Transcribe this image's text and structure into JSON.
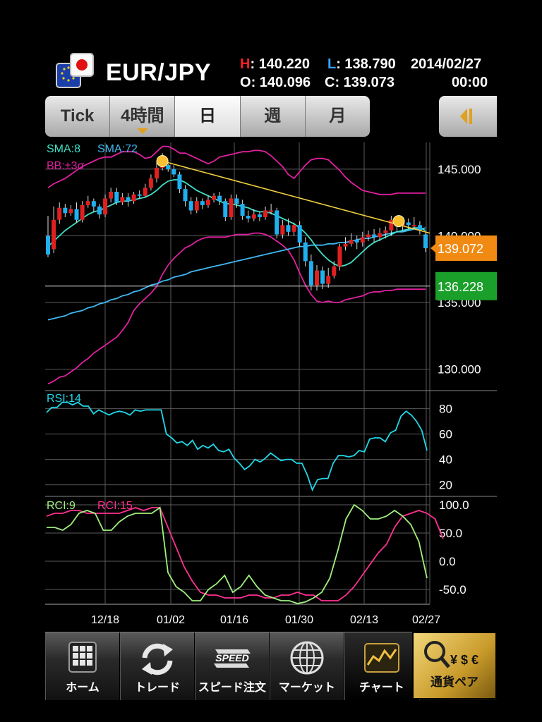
{
  "header": {
    "pair": "EUR/JPY",
    "high_key": "H",
    "high": ": 140.220",
    "low_key": "L",
    "low": ": 138.790",
    "date": "2014/02/27",
    "open_key": "O",
    "open": ": 140.096",
    "close_key": "C",
    "close": ": 139.073",
    "time": "00:00"
  },
  "tabs": [
    {
      "label": "Tick",
      "selected": false
    },
    {
      "label": "4時間",
      "selected": false
    },
    {
      "label": "日",
      "selected": true
    },
    {
      "label": "週",
      "selected": false
    },
    {
      "label": "月",
      "selected": false
    }
  ],
  "nav": {
    "home": "ホーム",
    "trade": "トレード",
    "speed": "スピード注文",
    "speed_icon_text": "SPEED",
    "market": "マーケット",
    "chart": "チャート",
    "pair": "通貨ペア",
    "pair_icon_text": "¥ $ €"
  },
  "colors": {
    "bid_tag": "#f08a12",
    "ask_tag": "#1aa02a",
    "sma8": "#40e0c8",
    "sma72": "#40b8f0",
    "bb": "#e020a0",
    "trendline": "#f0d040",
    "rsi": "#20d8e8",
    "rci9": "#a0f080",
    "rci15": "#ff3090",
    "candle_up": "#e02020",
    "candle_down": "#20b0f0"
  },
  "chart_data": [
    {
      "type": "candlestick",
      "title": "",
      "legend": [
        "SMA:8",
        "SMA:72",
        "BB:±3σ"
      ],
      "ylim": [
        128.5,
        147.0
      ],
      "y_ticks": [
        "145.000",
        "140.000",
        "135.000",
        "130.000"
      ],
      "y_tick_values": [
        145,
        140,
        135,
        130
      ],
      "x_tick_labels": [
        "12/18",
        "01/02",
        "01/16",
        "01/30",
        "02/13",
        "02/27"
      ],
      "current_price_tag": "139.072",
      "current_price": 139.072,
      "horizontal_line_tag": "136.228",
      "horizontal_line": 136.228,
      "candles": [
        [
          140.0,
          138.6,
          141.5,
          138.4
        ],
        [
          139.0,
          141.2,
          142.2,
          138.7
        ],
        [
          141.2,
          142.1,
          142.5,
          140.9
        ],
        [
          142.1,
          141.7,
          142.4,
          141.4
        ],
        [
          141.7,
          142.0,
          142.3,
          141.5
        ],
        [
          142.0,
          141.2,
          142.5,
          141.0
        ],
        [
          141.2,
          142.3,
          142.6,
          141.0
        ],
        [
          142.3,
          142.6,
          143.0,
          142.1
        ],
        [
          142.6,
          142.2,
          142.8,
          141.8
        ],
        [
          142.2,
          141.6,
          142.4,
          141.3
        ],
        [
          141.6,
          142.8,
          143.1,
          141.4
        ],
        [
          142.8,
          143.3,
          143.6,
          142.5
        ],
        [
          143.3,
          142.5,
          143.6,
          142.3
        ],
        [
          142.5,
          142.9,
          143.2,
          142.3
        ],
        [
          142.9,
          142.6,
          143.2,
          142.2
        ],
        [
          142.6,
          143.1,
          143.3,
          142.4
        ],
        [
          143.1,
          143.0,
          143.4,
          142.8
        ],
        [
          143.0,
          143.6,
          143.9,
          142.9
        ],
        [
          143.6,
          144.3,
          144.6,
          143.4
        ],
        [
          144.3,
          145.1,
          145.6,
          144.0
        ],
        [
          145.1,
          145.3,
          146.2,
          144.9
        ],
        [
          145.3,
          145.0,
          145.4,
          144.8
        ],
        [
          145.0,
          144.6,
          145.3,
          144.4
        ],
        [
          144.6,
          143.5,
          144.8,
          143.2
        ],
        [
          143.5,
          142.6,
          143.8,
          142.2
        ],
        [
          142.6,
          141.9,
          142.9,
          141.6
        ],
        [
          141.9,
          142.6,
          142.9,
          141.7
        ],
        [
          142.6,
          142.3,
          142.8,
          142.0
        ],
        [
          142.3,
          142.7,
          143.0,
          142.1
        ],
        [
          142.7,
          143.0,
          143.2,
          142.5
        ],
        [
          143.0,
          142.6,
          143.3,
          142.3
        ],
        [
          142.6,
          141.4,
          142.8,
          141.1
        ],
        [
          141.4,
          142.8,
          143.1,
          141.2
        ],
        [
          142.8,
          142.4,
          143.1,
          142.1
        ],
        [
          142.4,
          141.5,
          142.7,
          141.2
        ],
        [
          141.5,
          141.3,
          141.9,
          141.0
        ],
        [
          141.3,
          141.6,
          142.0,
          141.1
        ],
        [
          141.6,
          141.4,
          141.8,
          141.1
        ],
        [
          141.4,
          141.9,
          142.2,
          141.2
        ],
        [
          141.9,
          141.9,
          142.4,
          141.6
        ],
        [
          141.9,
          140.1,
          142.1,
          139.8
        ],
        [
          140.1,
          140.8,
          141.2,
          139.8
        ],
        [
          140.8,
          140.3,
          141.3,
          140.0
        ],
        [
          140.3,
          140.8,
          141.0,
          140.0
        ],
        [
          140.8,
          139.5,
          141.1,
          139.2
        ],
        [
          139.5,
          138.1,
          139.9,
          137.7
        ],
        [
          138.1,
          136.3,
          138.6,
          135.9
        ],
        [
          136.3,
          137.4,
          137.8,
          135.9
        ],
        [
          137.4,
          136.4,
          137.7,
          136.0
        ],
        [
          136.4,
          137.0,
          137.6,
          136.1
        ],
        [
          137.0,
          137.7,
          138.1,
          136.8
        ],
        [
          137.7,
          139.2,
          139.4,
          137.4
        ],
        [
          139.2,
          139.4,
          139.9,
          138.9
        ],
        [
          139.4,
          139.7,
          140.2,
          139.2
        ],
        [
          139.7,
          139.5,
          140.0,
          139.0
        ],
        [
          139.5,
          139.9,
          140.3,
          139.2
        ],
        [
          139.9,
          140.1,
          140.4,
          139.6
        ],
        [
          140.1,
          139.9,
          140.5,
          139.5
        ],
        [
          139.9,
          140.2,
          140.6,
          139.6
        ],
        [
          140.2,
          140.4,
          140.7,
          139.8
        ],
        [
          140.4,
          141.2,
          141.5,
          140.0
        ],
        [
          141.2,
          140.7,
          141.5,
          140.3
        ],
        [
          140.7,
          141.0,
          141.3,
          140.4
        ],
        [
          141.0,
          140.8,
          141.3,
          140.5
        ],
        [
          140.8,
          140.8,
          141.4,
          140.5
        ],
        [
          140.8,
          140.4,
          141.1,
          140.1
        ],
        [
          140.1,
          139.07,
          140.22,
          138.79
        ]
      ],
      "sma8": [
        139.2,
        139.6,
        140.0,
        140.4,
        140.7,
        141.0,
        141.3,
        141.6,
        141.8,
        141.9,
        142.1,
        142.3,
        142.5,
        142.6,
        142.6,
        142.7,
        142.8,
        142.9,
        143.1,
        143.4,
        143.8,
        144.1,
        144.2,
        144.2,
        144.0,
        143.7,
        143.4,
        143.2,
        143.0,
        142.8,
        142.6,
        142.4,
        142.4,
        142.3,
        142.2,
        142.1,
        141.9,
        141.8,
        141.8,
        141.7,
        141.5,
        141.3,
        141.1,
        140.9,
        140.6,
        140.2,
        139.7,
        139.1,
        138.6,
        138.2,
        137.9,
        137.7,
        137.8,
        138.0,
        138.4,
        138.8,
        139.2,
        139.5,
        139.7,
        139.9,
        140.1,
        140.3,
        140.4,
        140.5,
        140.6,
        140.6,
        140.4
      ],
      "sma72": [
        133.7,
        133.8,
        133.9,
        134.0,
        134.2,
        134.3,
        134.4,
        134.6,
        134.7,
        134.9,
        135.0,
        135.2,
        135.3,
        135.5,
        135.6,
        135.8,
        135.9,
        136.1,
        136.3,
        136.4,
        136.6,
        136.7,
        136.9,
        137.0,
        137.1,
        137.3,
        137.4,
        137.5,
        137.6,
        137.7,
        137.8,
        137.9,
        138.0,
        138.1,
        138.2,
        138.3,
        138.4,
        138.5,
        138.6,
        138.7,
        138.8,
        138.9,
        139.0,
        139.1,
        139.2,
        139.2,
        139.3,
        139.3,
        139.3,
        139.4,
        139.4,
        139.5,
        139.5,
        139.6,
        139.7,
        139.8,
        139.8,
        139.9,
        140.0,
        140.1,
        140.2,
        140.3,
        140.3,
        140.4,
        140.5,
        140.5,
        140.6
      ],
      "bb_upper": [
        143.6,
        143.9,
        144.1,
        144.3,
        144.6,
        144.9,
        145.2,
        145.4,
        145.6,
        145.8,
        145.9,
        145.9,
        146.1,
        146.3,
        146.3,
        146.3,
        146.1,
        145.8,
        145.9,
        146.3,
        146.7,
        146.7,
        146.5,
        146.2,
        146.2,
        146.0,
        145.8,
        145.6,
        145.4,
        145.6,
        145.9,
        146.0,
        146.1,
        146.2,
        146.3,
        146.3,
        146.4,
        146.4,
        146.3,
        146.0,
        145.6,
        145.2,
        144.6,
        144.3,
        144.8,
        145.3,
        145.7,
        145.8,
        145.8,
        145.7,
        145.3,
        144.9,
        144.4,
        144.0,
        143.7,
        143.4,
        143.3,
        143.2,
        143.1,
        143.1,
        143.1,
        143.2,
        143.2,
        143.2,
        143.2,
        143.2,
        143.2
      ],
      "bb_lower": [
        128.9,
        129.1,
        129.4,
        129.5,
        129.8,
        130.1,
        130.5,
        130.8,
        131.2,
        131.5,
        131.8,
        132.1,
        132.4,
        132.9,
        133.5,
        134.4,
        134.9,
        135.3,
        135.7,
        136.2,
        137.1,
        137.8,
        138.3,
        138.7,
        139.1,
        139.3,
        139.6,
        139.8,
        139.9,
        139.9,
        139.9,
        139.9,
        140.0,
        140.1,
        140.1,
        140.1,
        140.2,
        140.2,
        140.1,
        139.9,
        139.6,
        139.3,
        138.9,
        138.2,
        137.2,
        136.3,
        135.6,
        135.1,
        135.0,
        135.1,
        135.0,
        135.0,
        135.2,
        135.3,
        135.4,
        135.5,
        135.7,
        135.8,
        135.8,
        135.9,
        135.9,
        136.0,
        136.0,
        136.0,
        136.0,
        136.0,
        136.0
      ],
      "trendline": [
        [
          20,
          145.6
        ],
        [
          66,
          140.8
        ]
      ]
    },
    {
      "type": "line",
      "title": "",
      "legend": [
        "RSI:14"
      ],
      "ylim": [
        12,
        92
      ],
      "y_ticks": [
        "80",
        "60",
        "40",
        "20"
      ],
      "y_tick_values": [
        80,
        60,
        40,
        20
      ],
      "rsi": [
        77,
        81,
        81,
        85,
        85,
        83,
        85,
        82,
        82,
        76,
        79,
        77,
        75,
        77,
        78,
        77,
        75,
        79,
        78,
        79,
        79,
        79,
        79,
        60,
        57,
        53,
        54,
        51,
        55,
        48,
        51,
        49,
        52,
        47,
        46,
        48,
        41,
        37,
        32,
        35,
        40,
        38,
        41,
        45,
        42,
        39,
        40,
        40,
        37,
        37,
        28,
        16,
        24,
        25,
        25,
        37,
        43,
        43,
        42,
        43,
        47,
        46,
        56,
        57,
        57,
        54,
        61,
        63,
        74,
        78,
        75,
        70,
        63,
        47
      ]
    },
    {
      "type": "line",
      "title": "",
      "legend": [
        "RCI:9",
        "RCI:15"
      ],
      "ylim": [
        -75,
        110
      ],
      "y_ticks": [
        "100.0",
        "50.0",
        "0.0",
        "-50.0"
      ],
      "y_tick_values": [
        100,
        50,
        0,
        -50
      ],
      "rci9": [
        60,
        60,
        55,
        65,
        85,
        90,
        85,
        55,
        55,
        70,
        80,
        85,
        85,
        85,
        95,
        -20,
        -45,
        -55,
        -70,
        -70,
        -50,
        -40,
        -25,
        -55,
        -45,
        -25,
        -45,
        -60,
        -65,
        -70,
        -70,
        -75,
        -72,
        -65,
        -55,
        -30,
        20,
        75,
        100,
        90,
        75,
        75,
        80,
        90,
        80,
        65,
        35,
        -30
      ],
      "rci15": [
        80,
        85,
        85,
        90,
        90,
        85,
        85,
        85,
        85,
        85,
        90,
        95,
        90,
        95,
        95,
        60,
        25,
        -10,
        -35,
        -55,
        -60,
        -60,
        -65,
        -65,
        -65,
        -60,
        -60,
        -65,
        -65,
        -60,
        -60,
        -55,
        -60,
        -60,
        -70,
        -70,
        -70,
        -60,
        -45,
        -25,
        -5,
        15,
        30,
        60,
        80,
        85,
        90,
        85,
        75,
        40
      ]
    }
  ]
}
